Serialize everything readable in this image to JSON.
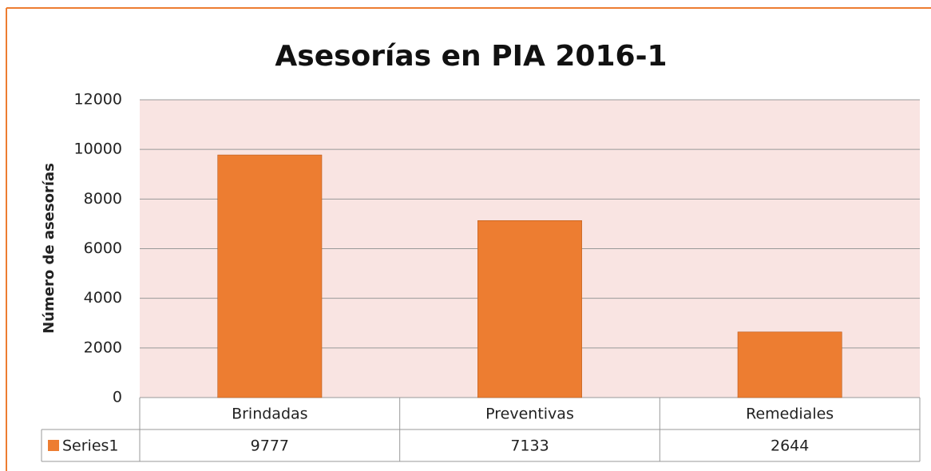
{
  "chart_data": {
    "type": "bar",
    "title": "Asesorías en PIA 2016-1",
    "y_label": "Número de asesorías",
    "series_name": "Series1",
    "categories": [
      "Brindadas",
      "Preventivas",
      "Remediales"
    ],
    "values": [
      9777,
      7133,
      2644
    ],
    "color": "#ed7d31",
    "ylim": [
      0,
      12000
    ],
    "yticks": [
      0,
      2000,
      4000,
      6000,
      8000,
      10000,
      12000
    ],
    "grid": true
  }
}
